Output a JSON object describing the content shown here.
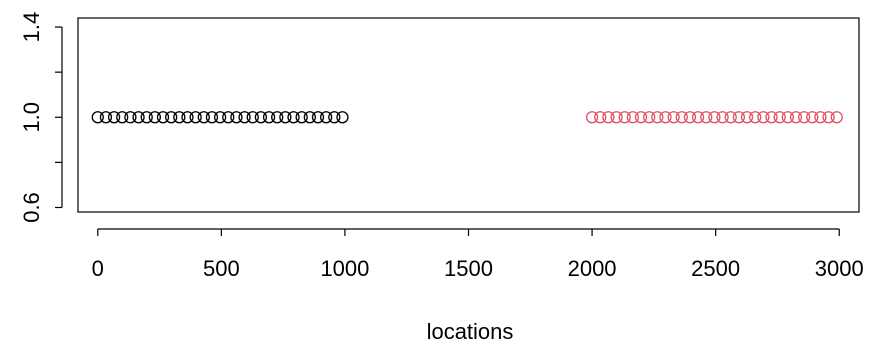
{
  "chart_data": {
    "type": "scatter",
    "title": "",
    "xlabel": "locations",
    "ylabel": "",
    "xlim": [
      -80,
      3080
    ],
    "ylim": [
      0.58,
      1.44
    ],
    "x_ticks": [
      0,
      500,
      1000,
      1500,
      2000,
      2500,
      3000
    ],
    "x_tick_labels": [
      "0",
      "500",
      "1000",
      "1500",
      "2000",
      "2500",
      "3000"
    ],
    "y_ticks": [
      0.6,
      0.8,
      1.0,
      1.2,
      1.4
    ],
    "y_tick_labels": [
      "0.6",
      "",
      "1.0",
      "",
      "1.4"
    ],
    "grid": false,
    "marker": "open-circle",
    "series": [
      {
        "color": "#000000",
        "x": [
          0,
          33,
          66,
          99,
          132,
          165,
          198,
          231,
          264,
          297,
          330,
          363,
          396,
          429,
          462,
          495,
          528,
          561,
          594,
          627,
          660,
          693,
          726,
          759,
          792,
          825,
          858,
          891,
          924,
          957,
          990
        ],
        "y": [
          1,
          1,
          1,
          1,
          1,
          1,
          1,
          1,
          1,
          1,
          1,
          1,
          1,
          1,
          1,
          1,
          1,
          1,
          1,
          1,
          1,
          1,
          1,
          1,
          1,
          1,
          1,
          1,
          1,
          1,
          1
        ]
      },
      {
        "color": "#DF536B",
        "x": [
          2000,
          2033,
          2066,
          2099,
          2132,
          2165,
          2198,
          2231,
          2264,
          2297,
          2330,
          2363,
          2396,
          2429,
          2462,
          2495,
          2528,
          2561,
          2594,
          2627,
          2660,
          2693,
          2726,
          2759,
          2792,
          2825,
          2858,
          2891,
          2924,
          2957,
          2990
        ],
        "y": [
          1,
          1,
          1,
          1,
          1,
          1,
          1,
          1,
          1,
          1,
          1,
          1,
          1,
          1,
          1,
          1,
          1,
          1,
          1,
          1,
          1,
          1,
          1,
          1,
          1,
          1,
          1,
          1,
          1,
          1,
          1
        ]
      }
    ]
  }
}
